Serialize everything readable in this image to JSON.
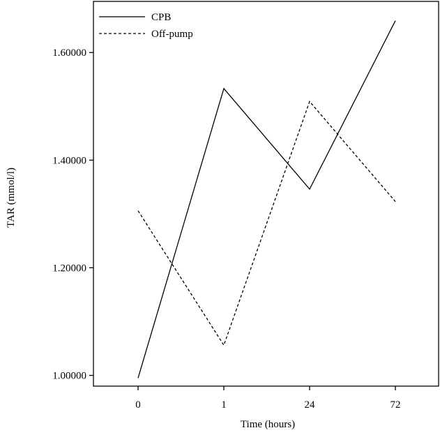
{
  "chart_data": {
    "type": "line",
    "xlabel": "Time (hours)",
    "ylabel": "TAR (mmol/l)",
    "categories": [
      "0",
      "1",
      "24",
      "72"
    ],
    "yticks": [
      "1.00000",
      "1.20000",
      "1.40000",
      "1.60000"
    ],
    "ylim": [
      0.98,
      1.695
    ],
    "legend_position": "top-left",
    "grid": false,
    "series": [
      {
        "name": "CPB",
        "values": [
          0.995,
          1.533,
          1.346,
          1.659
        ],
        "style": "solid",
        "color": "#000000"
      },
      {
        "name": "Off-pump",
        "values": [
          1.306,
          1.056,
          1.509,
          1.323
        ],
        "style": "dashed",
        "color": "#000000"
      }
    ]
  }
}
